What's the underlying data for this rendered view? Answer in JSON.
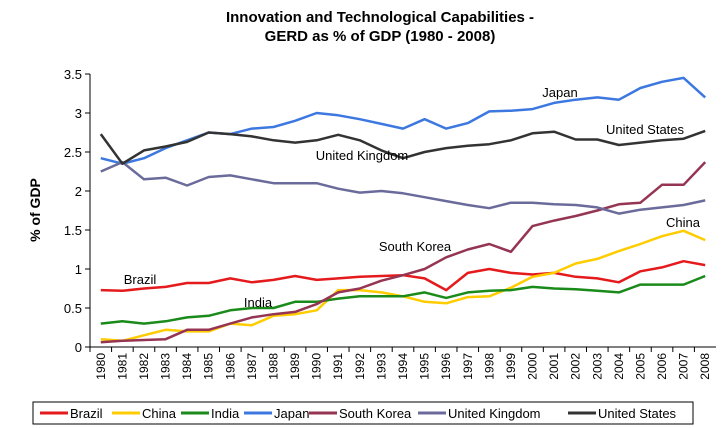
{
  "chart_data": {
    "type": "line",
    "title": [
      "Innovation and Technological Capabilities -",
      "GERD as % of GDP (1980 - 2008)"
    ],
    "y_label": "% of GDP",
    "categories": [
      "1980",
      "1981",
      "1982",
      "1983",
      "1984",
      "1985",
      "1986",
      "1987",
      "1988",
      "1989",
      "1990",
      "1991",
      "1992",
      "1993",
      "1994",
      "1995",
      "1996",
      "1997",
      "1998",
      "1999",
      "2000",
      "2001",
      "2002",
      "2003",
      "2004",
      "2005",
      "2006",
      "2007",
      "2008"
    ],
    "ylim": [
      0,
      3.5
    ],
    "yticks": [
      0,
      0.5,
      1,
      1.5,
      2,
      2.5,
      3,
      3.5
    ],
    "grid": false,
    "legend": "bottom",
    "series": [
      {
        "name": "Brazil",
        "color": "#e41a1c",
        "values": [
          0.73,
          0.72,
          0.75,
          0.77,
          0.82,
          0.82,
          0.88,
          0.83,
          0.86,
          0.91,
          0.86,
          0.88,
          0.9,
          0.91,
          0.92,
          0.88,
          0.73,
          0.95,
          1.0,
          0.95,
          0.93,
          0.95,
          0.9,
          0.88,
          0.83,
          0.97,
          1.02,
          1.1,
          1.05
        ]
      },
      {
        "name": "China",
        "color": "#ffcc00",
        "values": [
          0.1,
          0.08,
          0.15,
          0.22,
          0.2,
          0.2,
          0.3,
          0.28,
          0.4,
          0.42,
          0.47,
          0.73,
          0.73,
          0.7,
          0.65,
          0.58,
          0.56,
          0.64,
          0.65,
          0.76,
          0.9,
          0.95,
          1.07,
          1.13,
          1.23,
          1.32,
          1.42,
          1.49,
          1.37
        ]
      },
      {
        "name": "India",
        "color": "#1a8a1a",
        "values": [
          0.3,
          0.33,
          0.3,
          0.33,
          0.38,
          0.4,
          0.47,
          0.5,
          0.5,
          0.58,
          0.58,
          0.62,
          0.65,
          0.65,
          0.65,
          0.7,
          0.63,
          0.7,
          0.72,
          0.73,
          0.77,
          0.75,
          0.74,
          0.72,
          0.7,
          0.8,
          0.8,
          0.8,
          0.91
        ]
      },
      {
        "name": "Japan",
        "color": "#3c78e0",
        "values": [
          2.42,
          2.35,
          2.42,
          2.55,
          2.65,
          2.75,
          2.73,
          2.8,
          2.82,
          2.9,
          3.0,
          2.97,
          2.92,
          2.86,
          2.8,
          2.92,
          2.8,
          2.87,
          3.02,
          3.03,
          3.05,
          3.13,
          3.17,
          3.2,
          3.17,
          3.32,
          3.4,
          3.45,
          3.2
        ]
      },
      {
        "name": "South Korea",
        "color": "#953553",
        "values": [
          0.06,
          0.08,
          0.09,
          0.1,
          0.22,
          0.22,
          0.3,
          0.38,
          0.42,
          0.45,
          0.55,
          0.7,
          0.75,
          0.85,
          0.92,
          1.0,
          1.15,
          1.25,
          1.32,
          1.22,
          1.55,
          1.62,
          1.68,
          1.75,
          1.83,
          1.85,
          2.08,
          2.08,
          2.37
        ]
      },
      {
        "name": "United Kingdom",
        "color": "#6b6b9b",
        "values": [
          2.25,
          2.37,
          2.15,
          2.17,
          2.07,
          2.18,
          2.2,
          2.15,
          2.1,
          2.1,
          2.1,
          2.03,
          1.98,
          2.0,
          1.97,
          1.92,
          1.87,
          1.82,
          1.78,
          1.85,
          1.85,
          1.83,
          1.82,
          1.79,
          1.71,
          1.76,
          1.79,
          1.82,
          1.88
        ]
      },
      {
        "name": "United States",
        "color": "#333333",
        "values": [
          2.73,
          2.35,
          2.52,
          2.57,
          2.63,
          2.75,
          2.73,
          2.7,
          2.65,
          2.62,
          2.65,
          2.72,
          2.65,
          2.52,
          2.42,
          2.5,
          2.55,
          2.58,
          2.6,
          2.65,
          2.74,
          2.76,
          2.66,
          2.66,
          2.59,
          2.62,
          2.65,
          2.67,
          2.77
        ]
      }
    ],
    "annotations": [
      "Japan",
      "United States",
      "United Kingdom",
      "South Korea",
      "China",
      "Brazil",
      "India"
    ]
  }
}
